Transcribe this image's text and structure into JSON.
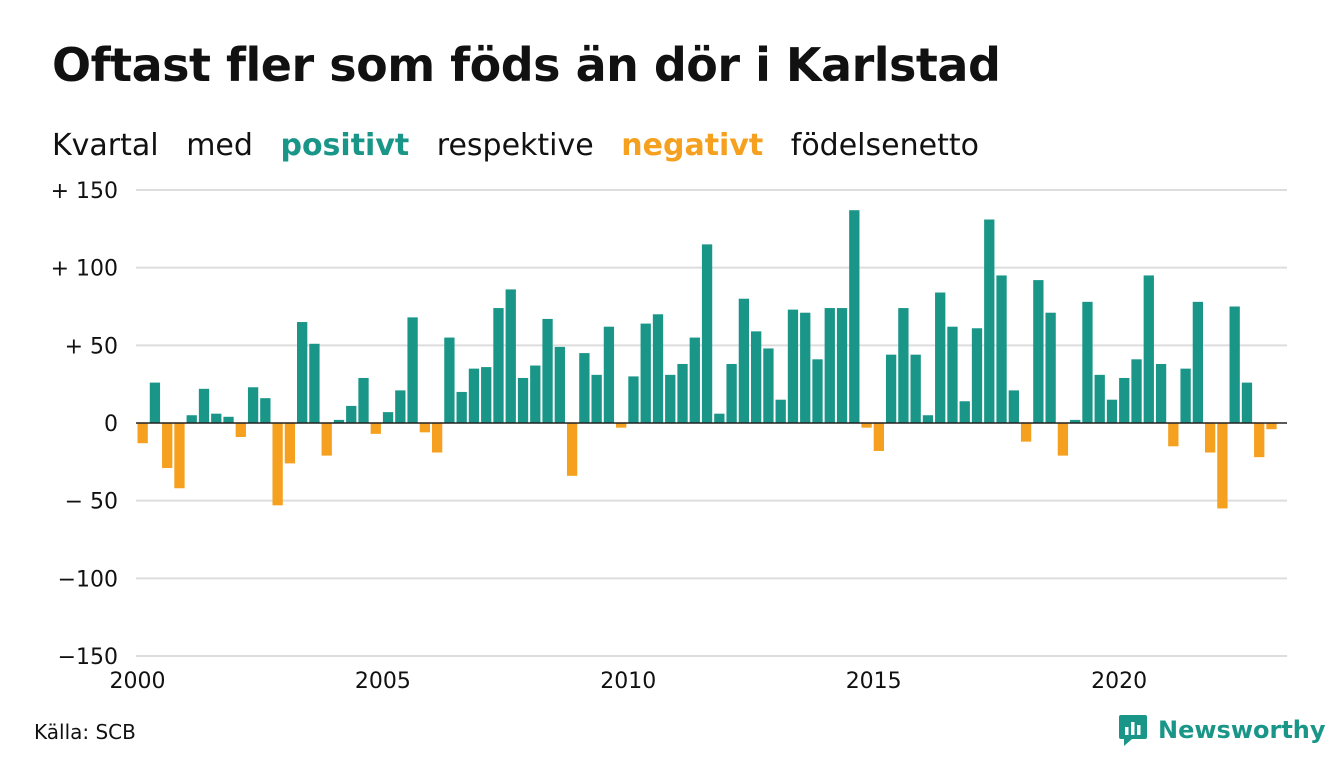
{
  "title": "Oftast fler som föds än dör i Karlstad",
  "subtitle": {
    "w1": "Kvartal",
    "w2": "med",
    "positive": "positivt",
    "w3": "respektive",
    "negative": "negativt",
    "w4": "födelsenetto"
  },
  "source": "Källa: SCB",
  "brand": "Newsworthy",
  "colors": {
    "positive": "#1a9688",
    "negative": "#f5a01f",
    "grid": "#dddddd",
    "zero_line": "#222222"
  },
  "chart_data": {
    "type": "bar",
    "start_year": 2000,
    "start_quarter": 1,
    "period": "quarter",
    "ylim": [
      -150,
      150
    ],
    "y_ticks": [
      {
        "value": 150,
        "label": "+ 150"
      },
      {
        "value": 100,
        "label": "+ 100"
      },
      {
        "value": 50,
        "label": "+  50"
      },
      {
        "value": 0,
        "label": "0"
      },
      {
        "value": -50,
        "label": "− 50"
      },
      {
        "value": -100,
        "label": "−100"
      },
      {
        "value": -150,
        "label": "−150"
      }
    ],
    "x_tick_labels": [
      "2000",
      "2005",
      "2010",
      "2015",
      "2020"
    ],
    "grid": true,
    "values": [
      -13,
      26,
      -29,
      -42,
      5,
      22,
      6,
      4,
      -9,
      23,
      16,
      -53,
      -26,
      65,
      51,
      -21,
      2,
      11,
      29,
      -7,
      7,
      21,
      68,
      -6,
      -19,
      55,
      20,
      35,
      36,
      74,
      86,
      29,
      37,
      67,
      49,
      -34,
      45,
      31,
      62,
      -3,
      30,
      64,
      70,
      31,
      38,
      55,
      115,
      6,
      38,
      80,
      59,
      48,
      15,
      73,
      71,
      41,
      74,
      74,
      137,
      -3,
      -18,
      44,
      74,
      44,
      5,
      84,
      62,
      14,
      61,
      131,
      95,
      21,
      -12,
      92,
      71,
      -21,
      2,
      78,
      31,
      15,
      29,
      41,
      95,
      38,
      -15,
      35,
      78,
      -19,
      -55,
      75,
      26,
      -22,
      -4
    ]
  }
}
